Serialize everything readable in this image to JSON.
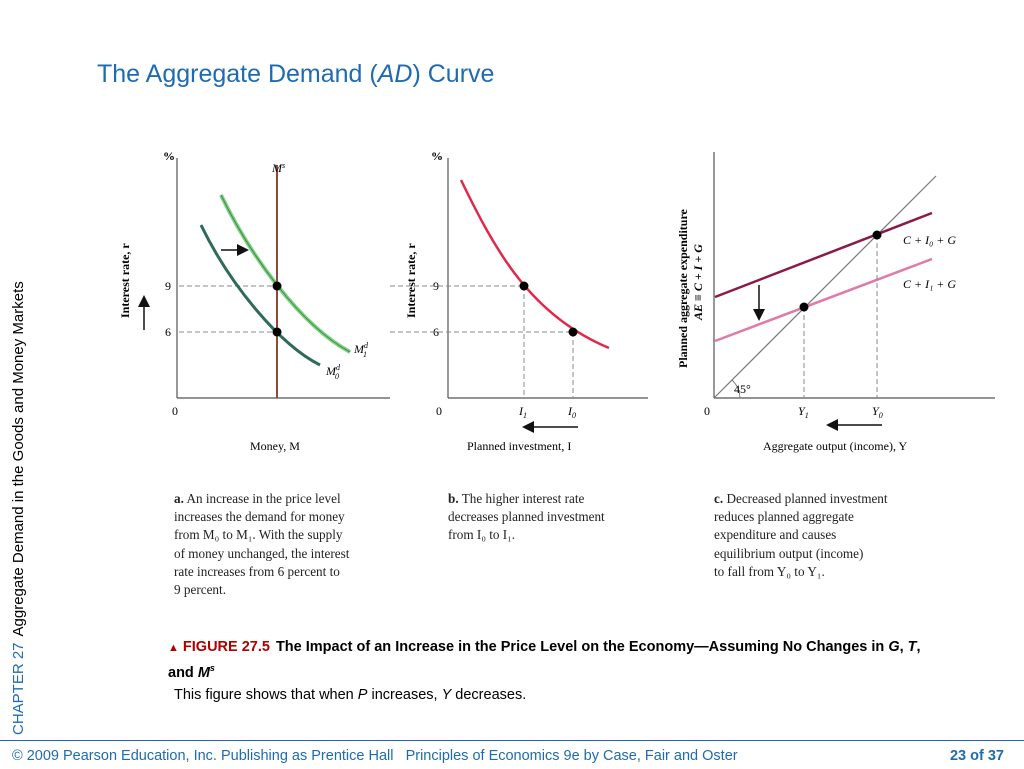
{
  "slide": {
    "title_pre": "The Aggregate Demand (",
    "title_em": "AD",
    "title_post": ") Curve"
  },
  "side": {
    "chapter": "CHAPTER 27",
    "text": "Aggregate Demand in the Goods and Money Markets"
  },
  "panel_a": {
    "y_unit": "%",
    "y_axis_label": "Interest rate, r",
    "x_axis_label": "Money, M",
    "origin": "0",
    "tick_9": "9",
    "tick_6": "6",
    "ms_label": "M",
    "ms_sup": "s",
    "md1_label": "M",
    "md1_sup": "d",
    "md1_sub": "1",
    "md0_label": "M",
    "md0_sup": "d",
    "md0_sub": "0",
    "caption": {
      "letter": "a.",
      "lines": [
        "An increase in the price level",
        "increases the demand for money",
        "from M₀ to M₁. With the supply",
        "of money unchanged, the interest",
        "rate increases from 6 percent to",
        "9 percent."
      ]
    }
  },
  "panel_b": {
    "y_unit": "%",
    "y_axis_label": "Interest rate, r",
    "x_axis_label": "Planned investment, I",
    "origin": "0",
    "tick_9": "9",
    "tick_6": "6",
    "i1_label": "I",
    "i1_sub": "1",
    "i0_label": "I",
    "i0_sub": "0",
    "caption": {
      "letter": "b.",
      "lines": [
        "The higher interest rate",
        "decreases planned investment",
        "from I₀ to I₁."
      ]
    }
  },
  "panel_c": {
    "y_axis_label_1": "Planned aggregate expenditure",
    "y_axis_label_2": "AE ≡ C + I + G",
    "x_axis_label": "Aggregate output (income), Y",
    "origin": "0",
    "angle_label": "45°",
    "line0_label": "C + I₀ + G",
    "line1_label": "C + I₁ + G",
    "y1_label": "Y",
    "y1_sub": "1",
    "y0_label": "Y",
    "y0_sub": "0",
    "caption": {
      "letter": "c.",
      "lines": [
        "Decreased planned investment",
        "reduces planned aggregate",
        "expenditure and causes",
        "equilibrium output (income)",
        "to fall from Y₀ to Y₁."
      ]
    }
  },
  "figure": {
    "label": "FIGURE 27.5",
    "title_pre": "The Impact of an Increase in the Price Level on the Economy—Assuming No Changes in ",
    "g": "G",
    "sep1": ", ",
    "t": "T",
    "sep2": ", and ",
    "m": "M",
    "m_sup": "s",
    "subtitle_pre": "This figure shows that when ",
    "subtitle_p": "P",
    "subtitle_mid": " increases, ",
    "subtitle_y": "Y",
    "subtitle_post": " decreases."
  },
  "footer": {
    "copyright": "© 2009 Pearson Education, Inc. Publishing as Prentice Hall",
    "book": "Principles of Economics 9e by Case, Fair and Oster",
    "page_current": "23",
    "page_of": "of",
    "page_total": "37"
  },
  "colors": {
    "title": "#1f6bb0",
    "md0_curve": "#2f6b5a",
    "md1_curve": "#7ed27e",
    "ms_line": "#8b4a3a",
    "investment_curve": "#e0284a",
    "ae0_line": "#8b1a4a",
    "ae1_line": "#e07aa8"
  }
}
